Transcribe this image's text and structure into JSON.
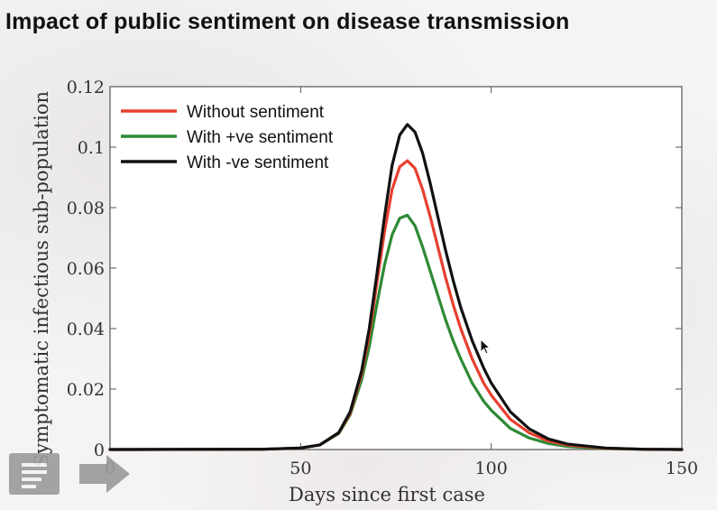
{
  "title": "Impact of public sentiment on disease transmission",
  "player": {
    "menu_icon": "menu-icon",
    "next_icon": "arrow-right-icon"
  },
  "chart_data": {
    "type": "line",
    "title": "Impact of public sentiment on disease transmission",
    "xlabel": "Days since first case",
    "ylabel": "Symptomatic infectious sub-population",
    "xlim": [
      0,
      150
    ],
    "ylim": [
      0,
      0.12
    ],
    "xticks": [
      0,
      50,
      100,
      150
    ],
    "yticks": [
      0,
      0.02,
      0.04,
      0.06,
      0.08,
      0.1,
      0.12
    ],
    "xtick_labels": [
      "0",
      "50",
      "100",
      "150"
    ],
    "ytick_labels": [
      "0",
      "0.02",
      "0.04",
      "0.06",
      "0.08",
      "0.1",
      "0.12"
    ],
    "grid": false,
    "legend_position": "top-left",
    "series": [
      {
        "name": "Without sentiment",
        "color": "#e8402f",
        "x": [
          0,
          40,
          50,
          55,
          60,
          63,
          66,
          68,
          70,
          72,
          74,
          76,
          78,
          80,
          82,
          84,
          86,
          88,
          90,
          92,
          95,
          98,
          100,
          105,
          110,
          115,
          120,
          130,
          140,
          150
        ],
        "y": [
          0,
          0.0001,
          0.0005,
          0.0015,
          0.0055,
          0.012,
          0.025,
          0.038,
          0.055,
          0.072,
          0.086,
          0.0935,
          0.0955,
          0.093,
          0.086,
          0.077,
          0.067,
          0.057,
          0.048,
          0.04,
          0.03,
          0.022,
          0.018,
          0.01,
          0.0055,
          0.0028,
          0.0015,
          0.0004,
          0.0001,
          0
        ]
      },
      {
        "name": "With +ve sentiment",
        "color": "#2e8a35",
        "x": [
          0,
          40,
          50,
          55,
          60,
          63,
          66,
          68,
          70,
          72,
          74,
          76,
          78,
          80,
          82,
          84,
          86,
          88,
          90,
          92,
          95,
          98,
          100,
          105,
          110,
          115,
          120,
          130,
          140,
          150
        ],
        "y": [
          0,
          0.0001,
          0.0005,
          0.0015,
          0.0053,
          0.0115,
          0.023,
          0.034,
          0.048,
          0.061,
          0.071,
          0.0765,
          0.0775,
          0.074,
          0.067,
          0.059,
          0.051,
          0.043,
          0.036,
          0.03,
          0.022,
          0.016,
          0.013,
          0.007,
          0.0038,
          0.002,
          0.001,
          0.0003,
          0.0001,
          0
        ]
      },
      {
        "name": "With -ve sentiment",
        "color": "#111111",
        "x": [
          0,
          40,
          50,
          55,
          60,
          63,
          66,
          68,
          70,
          72,
          74,
          76,
          78,
          80,
          82,
          84,
          86,
          88,
          90,
          92,
          95,
          98,
          100,
          105,
          110,
          115,
          120,
          130,
          140,
          150
        ],
        "y": [
          0,
          0.0001,
          0.0005,
          0.0015,
          0.0056,
          0.0125,
          0.026,
          0.04,
          0.058,
          0.077,
          0.094,
          0.104,
          0.1075,
          0.105,
          0.098,
          0.088,
          0.077,
          0.066,
          0.056,
          0.047,
          0.036,
          0.027,
          0.022,
          0.0125,
          0.0068,
          0.0035,
          0.0018,
          0.0005,
          0.0001,
          0
        ]
      }
    ]
  }
}
